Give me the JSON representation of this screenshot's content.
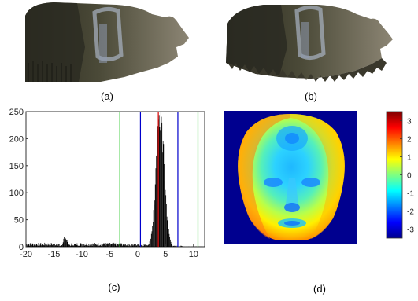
{
  "captions": {
    "a": "(a)",
    "b": "(b)",
    "c": "(c)",
    "d": "(d)"
  },
  "chart_data": [
    {
      "type": "bar",
      "panel": "(c)",
      "xlim": [
        -20,
        12
      ],
      "ylim": [
        0,
        250
      ],
      "xticks": [
        -20,
        -15,
        -10,
        -5,
        0,
        5,
        10
      ],
      "yticks": [
        0,
        50,
        100,
        150,
        200,
        250
      ],
      "vertical_lines": [
        {
          "x": -3.2,
          "color": "#33cc33"
        },
        {
          "x": 0.5,
          "color": "#0000cc"
        },
        {
          "x": 3.7,
          "color": "#dd0000"
        },
        {
          "x": 7.2,
          "color": "#0000cc"
        },
        {
          "x": 10.8,
          "color": "#33cc33"
        }
      ],
      "histogram": {
        "bin_width": 0.1,
        "peak_x": 4.0,
        "peak_y": 245,
        "background_level": 5,
        "small_bump": {
          "x": -13,
          "y": 18
        }
      }
    },
    {
      "type": "heatmap",
      "panel": "(d)",
      "colorbar_ticks": [
        -3,
        -2,
        -1,
        0,
        1,
        2,
        3
      ],
      "colorbar_range": [
        -3.5,
        3.5
      ],
      "colormap": "jet",
      "background_color": "#00008f"
    }
  ]
}
